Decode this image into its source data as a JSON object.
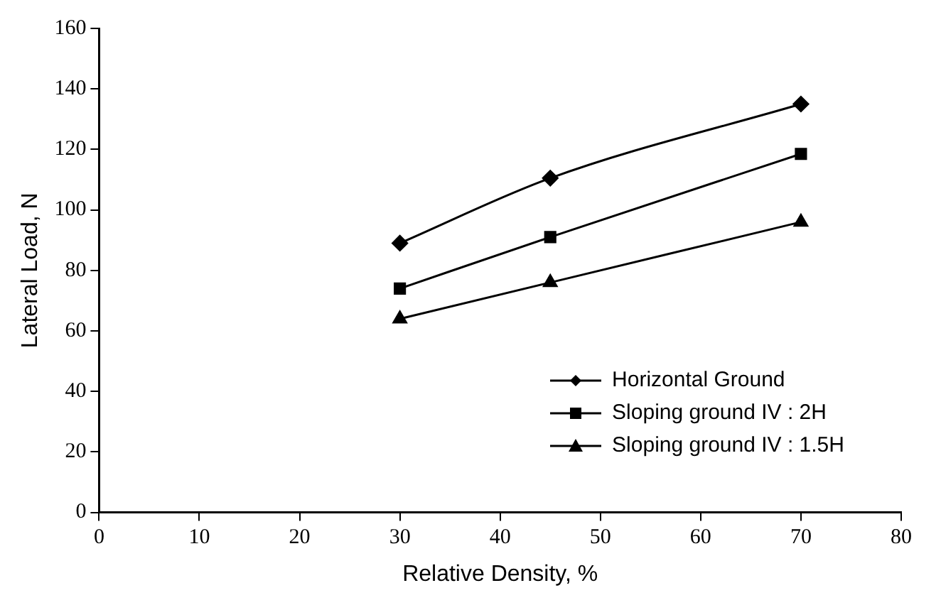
{
  "chart_data": {
    "type": "line",
    "xlabel": "Relative Density, %",
    "ylabel": "Lateral Load, N",
    "x": [
      30,
      45,
      70
    ],
    "series": [
      {
        "name": "Horizontal Ground",
        "color": "#000000",
        "marker": "diamond",
        "values": [
          89,
          110.5,
          135
        ]
      },
      {
        "name": "Sloping ground IV : 2H",
        "color": "#000000",
        "marker": "square",
        "values": [
          74,
          91,
          118.5
        ]
      },
      {
        "name": "Sloping ground IV : 1.5H",
        "color": "#000000",
        "marker": "triangle",
        "values": [
          64,
          76,
          96
        ]
      }
    ],
    "xlim": [
      0,
      80
    ],
    "xticks": [
      0,
      10,
      20,
      30,
      40,
      50,
      60,
      70,
      80
    ],
    "ylim": [
      0,
      160
    ],
    "yticks": [
      0,
      20,
      40,
      60,
      80,
      100,
      120,
      140,
      160
    ],
    "grid": false,
    "legend": "bottom right",
    "line_style": "solid"
  }
}
